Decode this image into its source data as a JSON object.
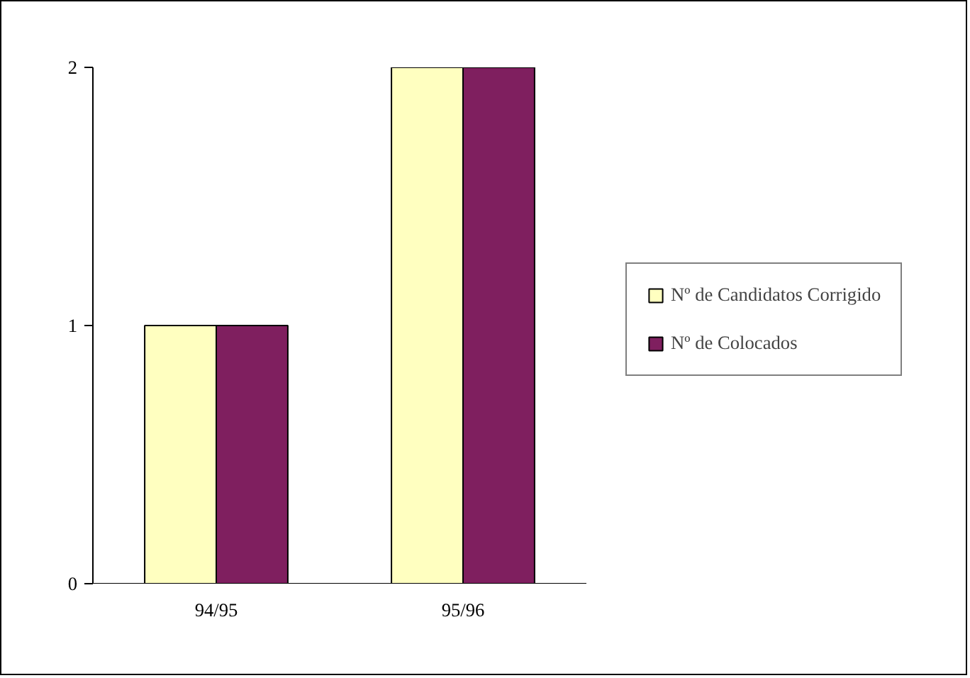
{
  "chart_data": {
    "type": "bar",
    "categories": [
      "94/95",
      "95/96"
    ],
    "series": [
      {
        "name": "Nº de Candidatos Corrigido",
        "color": "#ffffc0",
        "values": [
          1,
          2
        ]
      },
      {
        "name": "Nº de Colocados",
        "color": "#7f1f5f",
        "values": [
          1,
          2
        ]
      }
    ],
    "ylim": [
      0,
      2
    ],
    "yticks": [
      0,
      1,
      2
    ],
    "grid": false,
    "legend": "right"
  }
}
